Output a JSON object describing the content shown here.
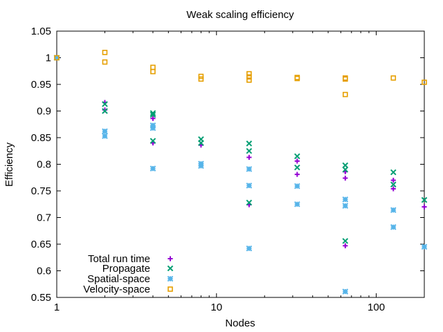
{
  "chart_data": {
    "type": "scatter",
    "title": "Weak scaling efficiency",
    "xlabel": "Nodes",
    "ylabel": "Efficiency",
    "xscale": "log",
    "xlim": [
      1,
      200
    ],
    "ylim": [
      0.55,
      1.05
    ],
    "xticks": [
      {
        "value": 1,
        "label": "1"
      },
      {
        "value": 10,
        "label": "10"
      },
      {
        "value": 100,
        "label": "100"
      }
    ],
    "yticks": [
      {
        "value": 0.55,
        "label": "0.55"
      },
      {
        "value": 0.6,
        "label": "0.6"
      },
      {
        "value": 0.65,
        "label": "0.65"
      },
      {
        "value": 0.7,
        "label": "0.7"
      },
      {
        "value": 0.75,
        "label": "0.75"
      },
      {
        "value": 0.8,
        "label": "0.8"
      },
      {
        "value": 0.85,
        "label": "0.85"
      },
      {
        "value": 0.9,
        "label": "0.9"
      },
      {
        "value": 0.95,
        "label": "0.95"
      },
      {
        "value": 1,
        "label": "1"
      },
      {
        "value": 1.05,
        "label": "1.05"
      }
    ],
    "grid": false,
    "legend_position": "bottom-left",
    "series": [
      {
        "name": "Total run time",
        "marker": "plus",
        "color": "#9400d3",
        "points": [
          [
            1,
            1.0
          ],
          [
            2,
            0.916
          ],
          [
            2,
            0.902
          ],
          [
            4,
            0.886
          ],
          [
            4,
            0.84
          ],
          [
            8,
            0.836
          ],
          [
            16,
            0.813
          ],
          [
            16,
            0.724
          ],
          [
            32,
            0.806
          ],
          [
            32,
            0.781
          ],
          [
            64,
            0.786
          ],
          [
            64,
            0.774
          ],
          [
            64,
            0.647
          ],
          [
            128,
            0.77
          ],
          [
            128,
            0.754
          ],
          [
            200,
            0.72
          ]
        ]
      },
      {
        "name": "Propagate",
        "marker": "cross",
        "color": "#009e73",
        "points": [
          [
            1,
            1.0
          ],
          [
            2,
            0.913
          ],
          [
            2,
            0.9
          ],
          [
            4,
            0.896
          ],
          [
            4,
            0.893
          ],
          [
            4,
            0.844
          ],
          [
            8,
            0.847
          ],
          [
            8,
            0.84
          ],
          [
            16,
            0.839
          ],
          [
            16,
            0.825
          ],
          [
            16,
            0.728
          ],
          [
            32,
            0.815
          ],
          [
            32,
            0.794
          ],
          [
            64,
            0.798
          ],
          [
            64,
            0.79
          ],
          [
            64,
            0.656
          ],
          [
            128,
            0.785
          ],
          [
            128,
            0.762
          ],
          [
            200,
            0.733
          ]
        ]
      },
      {
        "name": "Spatial-space",
        "marker": "star",
        "color": "#56b4e9",
        "points": [
          [
            1,
            1.0
          ],
          [
            2,
            0.862
          ],
          [
            2,
            0.853
          ],
          [
            4,
            0.873
          ],
          [
            4,
            0.868
          ],
          [
            4,
            0.792
          ],
          [
            8,
            0.801
          ],
          [
            8,
            0.797
          ],
          [
            16,
            0.791
          ],
          [
            16,
            0.76
          ],
          [
            16,
            0.642
          ],
          [
            32,
            0.759
          ],
          [
            32,
            0.725
          ],
          [
            64,
            0.734
          ],
          [
            64,
            0.722
          ],
          [
            64,
            0.561
          ],
          [
            128,
            0.714
          ],
          [
            128,
            0.682
          ],
          [
            200,
            0.645
          ]
        ]
      },
      {
        "name": "Velocity-space",
        "marker": "square",
        "color": "#e69f00",
        "points": [
          [
            1,
            1.0
          ],
          [
            2,
            1.01
          ],
          [
            2,
            0.992
          ],
          [
            4,
            0.982
          ],
          [
            4,
            0.974
          ],
          [
            8,
            0.965
          ],
          [
            8,
            0.96
          ],
          [
            16,
            0.97
          ],
          [
            16,
            0.964
          ],
          [
            16,
            0.958
          ],
          [
            32,
            0.963
          ],
          [
            32,
            0.961
          ],
          [
            64,
            0.962
          ],
          [
            64,
            0.96
          ],
          [
            64,
            0.931
          ],
          [
            128,
            0.962
          ],
          [
            200,
            0.954
          ]
        ]
      }
    ]
  }
}
